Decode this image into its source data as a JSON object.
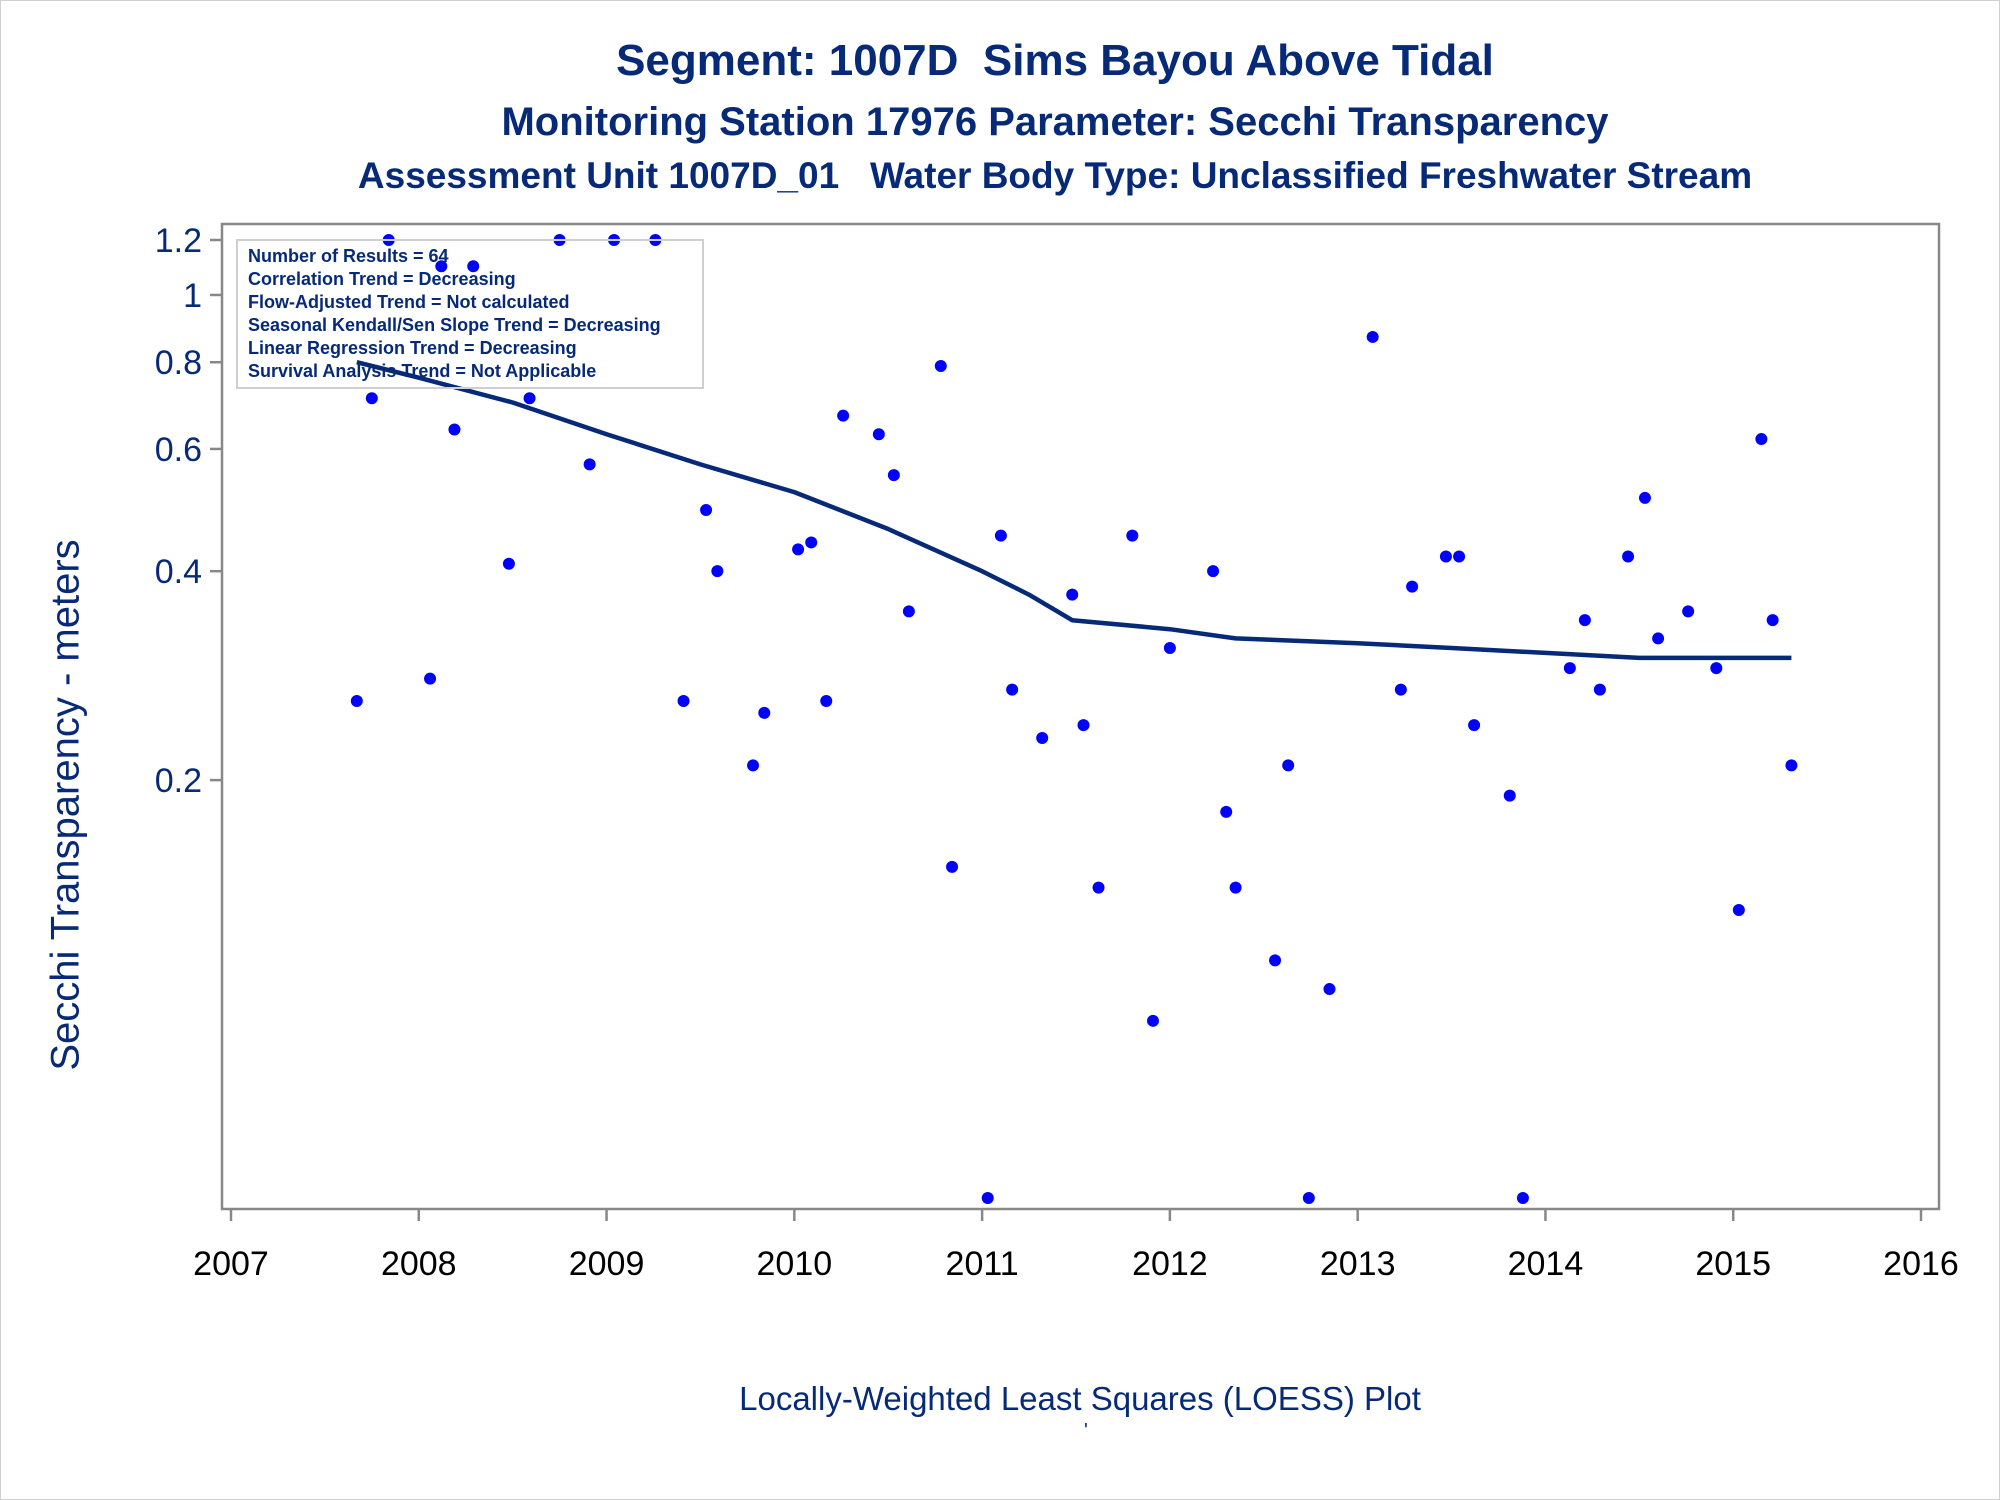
{
  "titles": {
    "line1": "Segment: 1007D  Sims Bayou Above Tidal",
    "line2": "Monitoring Station 17976 Parameter: Secchi Transparency",
    "line3": "Assessment Unit 1007D_01   Water Body Type: Unclassified Freshwater Stream"
  },
  "footer": {
    "caption": "Locally-Weighted Least Squares (LOESS) Plot",
    "mark": "'"
  },
  "stats": [
    "Number of Results = 64",
    "Correlation Trend = Decreasing",
    "Flow-Adjusted Trend = Not calculated",
    "Seasonal Kendall/Sen Slope Trend = Decreasing",
    "Linear Regression Trend = Decreasing",
    "Survival Analysis Trend = Not Applicable"
  ],
  "colors": {
    "text": "#062a78",
    "points": "#0000ff",
    "loess_line": "#062a78",
    "axis": "#888888"
  },
  "chart_data": {
    "type": "scatter",
    "xlabel": "",
    "ylabel": "Secchi Transparency - meters",
    "y_scale": "log",
    "xlim": [
      2007,
      2016
    ],
    "ylim": [
      0.05,
      1.2
    ],
    "x_ticks": [
      "2007",
      "2008",
      "2009",
      "2010",
      "2011",
      "2012",
      "2013",
      "2014",
      "2015",
      "2016"
    ],
    "y_ticks": [
      {
        "value": 0.2,
        "label": "0.2"
      },
      {
        "value": 0.4,
        "label": "0.4"
      },
      {
        "value": 0.6,
        "label": "0.6"
      },
      {
        "value": 0.8,
        "label": "0.8"
      },
      {
        "value": 1.0,
        "label": "1"
      },
      {
        "value": 1.2,
        "label": "1.2"
      }
    ],
    "grid": false,
    "legend": "none",
    "series": [
      {
        "kind": "points",
        "points": [
          {
            "x": 2007.67,
            "y": 0.26
          },
          {
            "x": 2007.75,
            "y": 0.71
          },
          {
            "x": 2007.84,
            "y": 1.2
          },
          {
            "x": 2008.06,
            "y": 0.28
          },
          {
            "x": 2008.12,
            "y": 1.1
          },
          {
            "x": 2008.19,
            "y": 0.64
          },
          {
            "x": 2008.29,
            "y": 1.1
          },
          {
            "x": 2008.48,
            "y": 0.41
          },
          {
            "x": 2008.59,
            "y": 0.71
          },
          {
            "x": 2008.75,
            "y": 1.2
          },
          {
            "x": 2008.91,
            "y": 0.57
          },
          {
            "x": 2009.04,
            "y": 1.2
          },
          {
            "x": 2009.26,
            "y": 1.2
          },
          {
            "x": 2009.41,
            "y": 0.26
          },
          {
            "x": 2009.53,
            "y": 0.49
          },
          {
            "x": 2009.59,
            "y": 0.4
          },
          {
            "x": 2009.78,
            "y": 0.21
          },
          {
            "x": 2009.84,
            "y": 0.25
          },
          {
            "x": 2010.02,
            "y": 0.43
          },
          {
            "x": 2010.09,
            "y": 0.44
          },
          {
            "x": 2010.17,
            "y": 0.26
          },
          {
            "x": 2010.26,
            "y": 0.67
          },
          {
            "x": 2010.45,
            "y": 0.63
          },
          {
            "x": 2010.53,
            "y": 0.55
          },
          {
            "x": 2010.61,
            "y": 0.35
          },
          {
            "x": 2010.78,
            "y": 0.79
          },
          {
            "x": 2010.84,
            "y": 0.15
          },
          {
            "x": 2011.03,
            "y": 0.05
          },
          {
            "x": 2011.1,
            "y": 0.45
          },
          {
            "x": 2011.16,
            "y": 0.27
          },
          {
            "x": 2011.32,
            "y": 0.23
          },
          {
            "x": 2011.48,
            "y": 0.37
          },
          {
            "x": 2011.54,
            "y": 0.24
          },
          {
            "x": 2011.62,
            "y": 0.14
          },
          {
            "x": 2011.8,
            "y": 0.45
          },
          {
            "x": 2011.91,
            "y": 0.09
          },
          {
            "x": 2012.0,
            "y": 0.31
          },
          {
            "x": 2012.23,
            "y": 0.4
          },
          {
            "x": 2012.3,
            "y": 0.18
          },
          {
            "x": 2012.35,
            "y": 0.14
          },
          {
            "x": 2012.56,
            "y": 0.11
          },
          {
            "x": 2012.63,
            "y": 0.21
          },
          {
            "x": 2012.74,
            "y": 0.05
          },
          {
            "x": 2012.85,
            "y": 0.1
          },
          {
            "x": 2013.08,
            "y": 0.87
          },
          {
            "x": 2013.23,
            "y": 0.27
          },
          {
            "x": 2013.29,
            "y": 0.38
          },
          {
            "x": 2013.47,
            "y": 0.42
          },
          {
            "x": 2013.54,
            "y": 0.42
          },
          {
            "x": 2013.62,
            "y": 0.24
          },
          {
            "x": 2013.81,
            "y": 0.19
          },
          {
            "x": 2013.88,
            "y": 0.05
          },
          {
            "x": 2014.13,
            "y": 0.29
          },
          {
            "x": 2014.21,
            "y": 0.34
          },
          {
            "x": 2014.29,
            "y": 0.27
          },
          {
            "x": 2014.44,
            "y": 0.42
          },
          {
            "x": 2014.53,
            "y": 0.51
          },
          {
            "x": 2014.6,
            "y": 0.32
          },
          {
            "x": 2014.76,
            "y": 0.35
          },
          {
            "x": 2014.91,
            "y": 0.29
          },
          {
            "x": 2015.03,
            "y": 0.13
          },
          {
            "x": 2015.15,
            "y": 0.62
          },
          {
            "x": 2015.21,
            "y": 0.34
          },
          {
            "x": 2015.31,
            "y": 0.21
          }
        ]
      },
      {
        "kind": "loess",
        "points": [
          {
            "x": 2007.67,
            "y": 0.8
          },
          {
            "x": 2008.0,
            "y": 0.76
          },
          {
            "x": 2008.5,
            "y": 0.7
          },
          {
            "x": 2009.0,
            "y": 0.63
          },
          {
            "x": 2009.5,
            "y": 0.57
          },
          {
            "x": 2010.0,
            "y": 0.52
          },
          {
            "x": 2010.5,
            "y": 0.46
          },
          {
            "x": 2011.0,
            "y": 0.4
          },
          {
            "x": 2011.25,
            "y": 0.37
          },
          {
            "x": 2011.48,
            "y": 0.34
          },
          {
            "x": 2012.0,
            "y": 0.33
          },
          {
            "x": 2012.35,
            "y": 0.32
          },
          {
            "x": 2013.0,
            "y": 0.315
          },
          {
            "x": 2013.5,
            "y": 0.31
          },
          {
            "x": 2014.0,
            "y": 0.305
          },
          {
            "x": 2014.5,
            "y": 0.3
          },
          {
            "x": 2015.31,
            "y": 0.3
          }
        ]
      }
    ]
  }
}
